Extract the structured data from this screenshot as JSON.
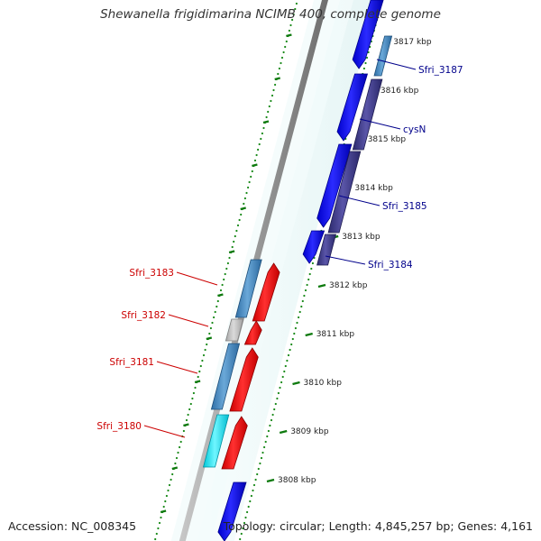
{
  "title": "Shewanella frigidimarina NCIMB 400, complete genome",
  "footer": {
    "accession": "Accession: NC_008345",
    "topology": "Topology: circular; Length: 4,845,257 bp; Genes: 4,161"
  },
  "colors": {
    "forward_strand": "#0000ee",
    "reverse_strand": "#ff0000",
    "cysN_feature": "#4a4590",
    "steelblue_feature": "#4a90c8",
    "cyan_feature": "#00e0f0",
    "grey_feature": "#c0c0c0",
    "forward_label": "#00008b",
    "reverse_label": "#cc0000",
    "gc_dots": "#1a8a1a",
    "backbone": "#8c8c8c"
  },
  "scale": {
    "unit": "kbp",
    "tick_labels": [
      "3808 kbp",
      "3809 kbp",
      "3810 kbp",
      "3811 kbp",
      "3812 kbp",
      "3813 kbp",
      "3814 kbp",
      "3815 kbp",
      "3816 kbp",
      "3817 kbp"
    ]
  },
  "genes": [
    {
      "label": "Sfri_3187",
      "strand": "forward",
      "color": "forward_label"
    },
    {
      "label": "cysN",
      "strand": "forward",
      "color": "forward_label"
    },
    {
      "label": "Sfri_3185",
      "strand": "forward",
      "color": "forward_label"
    },
    {
      "label": "Sfri_3184",
      "strand": "forward",
      "color": "forward_label"
    },
    {
      "label": "Sfri_3183",
      "strand": "reverse",
      "color": "reverse_label"
    },
    {
      "label": "Sfri_3182",
      "strand": "reverse",
      "color": "reverse_label"
    },
    {
      "label": "Sfri_3181",
      "strand": "reverse",
      "color": "reverse_label"
    },
    {
      "label": "Sfri_3180",
      "strand": "reverse",
      "color": "reverse_label"
    }
  ]
}
